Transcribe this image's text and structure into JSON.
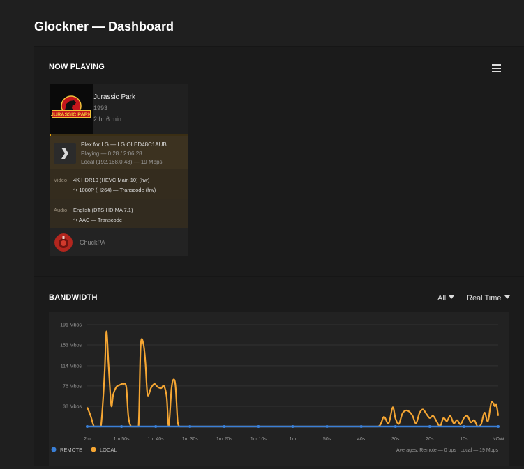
{
  "header": {
    "title": "Glockner — Dashboard"
  },
  "now_playing": {
    "section_title": "NOW PLAYING",
    "movie": {
      "title": "Jurassic Park",
      "year": "1993",
      "duration": "2 hr 6 min",
      "poster_text": "JURASSIC PARK"
    },
    "progress": 0.0037,
    "player": {
      "name": "Plex for LG  —  LG OLED48C1AUB",
      "state": "Playing — 0:28 / 2:06:28",
      "network": "Local (192.168.0.43) — 19 Mbps"
    },
    "video": {
      "label": "Video",
      "line1": "4K HDR10 (HEVC Main 10) (hw)",
      "line2": "↪  1080P (H264) — Transcode (hw)"
    },
    "audio": {
      "label": "Audio",
      "line1": "English (DTS-HD MA 7.1)",
      "line2": "↪  AAC — Transcode"
    },
    "user": {
      "name": "ChuckPA"
    }
  },
  "bandwidth": {
    "section_title": "BANDWIDTH",
    "filter_label": "All",
    "range_label": "Real Time",
    "legend": {
      "remote": "REMOTE",
      "local": "LOCAL"
    },
    "averages": "Averages: Remote — 0 bps | Local — 19 Mbps",
    "colors": {
      "remote": "#3a7fd6",
      "local": "#f5a633"
    }
  },
  "chart_data": {
    "type": "line",
    "ylim": [
      0,
      191
    ],
    "y_ticks": [
      {
        "v": 38,
        "label": "38 Mbps"
      },
      {
        "v": 76,
        "label": "76 Mbps"
      },
      {
        "v": 114,
        "label": "114 Mbps"
      },
      {
        "v": 153,
        "label": "153 Mbps"
      },
      {
        "v": 191,
        "label": "191 Mbps"
      }
    ],
    "xlim": [
      -120,
      0
    ],
    "x_ticks": [
      {
        "v": -120,
        "label": "2m"
      },
      {
        "v": -110,
        "label": "1m 50s"
      },
      {
        "v": -100,
        "label": "1m 40s"
      },
      {
        "v": -90,
        "label": "1m 30s"
      },
      {
        "v": -80,
        "label": "1m 20s"
      },
      {
        "v": -70,
        "label": "1m 10s"
      },
      {
        "v": -60,
        "label": "1m"
      },
      {
        "v": -50,
        "label": "50s"
      },
      {
        "v": -40,
        "label": "40s"
      },
      {
        "v": -30,
        "label": "30s"
      },
      {
        "v": -20,
        "label": "20s"
      },
      {
        "v": -10,
        "label": "10s"
      },
      {
        "v": 0,
        "label": "NOW"
      }
    ],
    "series": [
      {
        "name": "REMOTE",
        "points": [
          [
            -120,
            0
          ],
          [
            -110,
            0
          ],
          [
            -100,
            0
          ],
          [
            -90,
            0
          ],
          [
            -80,
            0
          ],
          [
            -70,
            0
          ],
          [
            -60,
            0
          ],
          [
            -50,
            0
          ],
          [
            -40,
            0
          ],
          [
            -30,
            0
          ],
          [
            -20,
            0
          ],
          [
            -10,
            0
          ],
          [
            0,
            0
          ]
        ]
      },
      {
        "name": "LOCAL",
        "points": [
          [
            -120,
            36
          ],
          [
            -119,
            20
          ],
          [
            -118,
            0
          ],
          [
            -117,
            0
          ],
          [
            -116,
            0
          ],
          [
            -115,
            90
          ],
          [
            -114.4,
            178
          ],
          [
            -113.8,
            120
          ],
          [
            -113,
            40
          ],
          [
            -112.4,
            60
          ],
          [
            -111.5,
            74
          ],
          [
            -110.5,
            78
          ],
          [
            -109.5,
            80
          ],
          [
            -108.6,
            74
          ],
          [
            -108,
            20
          ],
          [
            -107.2,
            0
          ],
          [
            -106,
            0
          ],
          [
            -105,
            0
          ],
          [
            -104.4,
            150
          ],
          [
            -103.6,
            155
          ],
          [
            -103,
            120
          ],
          [
            -102.4,
            60
          ],
          [
            -101.4,
            72
          ],
          [
            -100.4,
            80
          ],
          [
            -99.4,
            74
          ],
          [
            -98.4,
            72
          ],
          [
            -97.6,
            76
          ],
          [
            -96.8,
            55
          ],
          [
            -96.2,
            0
          ],
          [
            -95.4,
            70
          ],
          [
            -94.8,
            88
          ],
          [
            -94.2,
            75
          ],
          [
            -93.6,
            10
          ],
          [
            -93,
            0
          ],
          [
            -92,
            0
          ],
          [
            -80,
            0
          ],
          [
            -70,
            0
          ],
          [
            -60,
            0
          ],
          [
            -50,
            0
          ],
          [
            -40,
            0
          ],
          [
            -35,
            0
          ],
          [
            -33.4,
            18
          ],
          [
            -32,
            6
          ],
          [
            -30.8,
            36
          ],
          [
            -30,
            15
          ],
          [
            -29,
            5
          ],
          [
            -28,
            24
          ],
          [
            -27,
            30
          ],
          [
            -26,
            28
          ],
          [
            -25,
            20
          ],
          [
            -24,
            6
          ],
          [
            -23,
            25
          ],
          [
            -22,
            32
          ],
          [
            -21,
            24
          ],
          [
            -20,
            16
          ],
          [
            -19,
            20
          ],
          [
            -18,
            10
          ],
          [
            -17,
            0
          ],
          [
            -16,
            16
          ],
          [
            -15,
            10
          ],
          [
            -14,
            20
          ],
          [
            -13,
            6
          ],
          [
            -12,
            12
          ],
          [
            -11,
            4
          ],
          [
            -10,
            16
          ],
          [
            -9,
            20
          ],
          [
            -8,
            8
          ],
          [
            -7,
            12
          ],
          [
            -6,
            0
          ],
          [
            -5,
            4
          ],
          [
            -4,
            26
          ],
          [
            -3,
            10
          ],
          [
            -2,
            45
          ],
          [
            -1,
            38
          ],
          [
            -0.5,
            40
          ],
          [
            0,
            20
          ]
        ]
      }
    ]
  }
}
